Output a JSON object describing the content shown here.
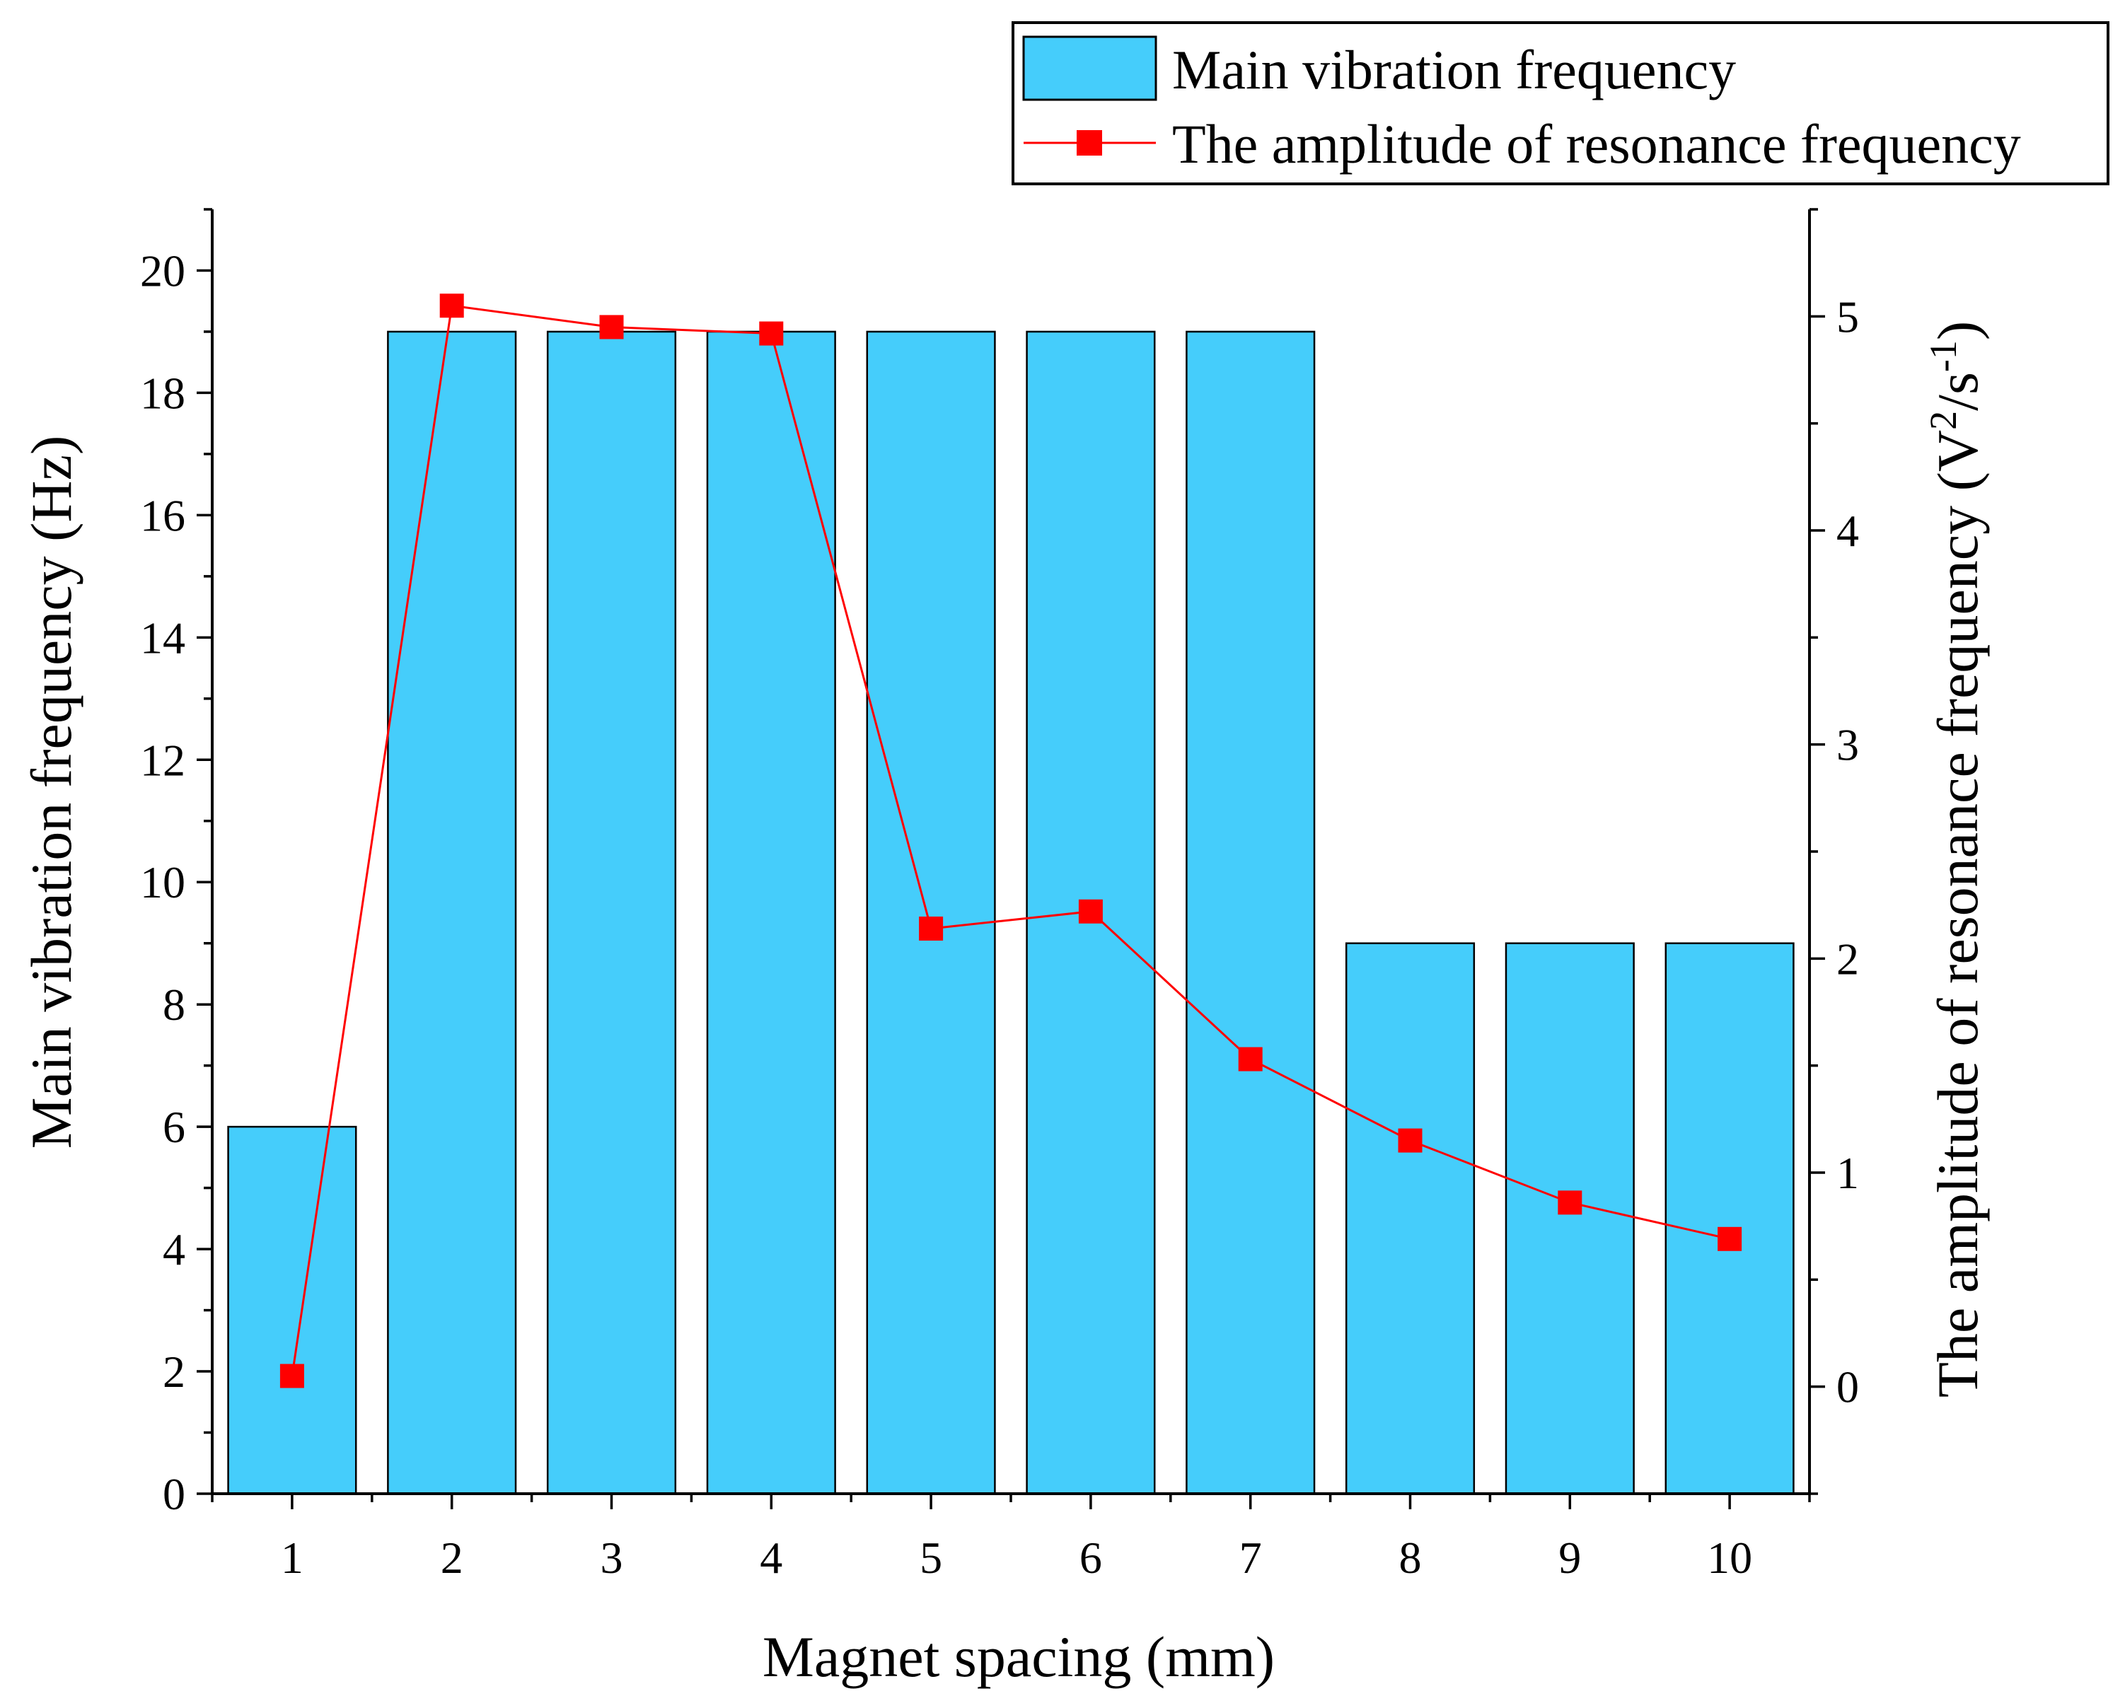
{
  "chart_data": {
    "type": "bar",
    "categories": [
      "1",
      "2",
      "3",
      "4",
      "5",
      "6",
      "7",
      "8",
      "9",
      "10"
    ],
    "xlabel": "Magnet spacing (mm)",
    "y_left": {
      "label": "Main vibration frequency (Hz)",
      "ylim": [
        0,
        21
      ],
      "ticks": [
        "0",
        "2",
        "4",
        "6",
        "8",
        "10",
        "12",
        "14",
        "16",
        "18",
        "20"
      ]
    },
    "y_right": {
      "label_main": "The amplitude of resonance frequency (V",
      "label_sup1": "2",
      "label_mid": "/s",
      "label_sup2": "-1",
      "label_end": ")",
      "ylim": [
        -0.5,
        5.5
      ],
      "ticks": [
        "0",
        "1",
        "2",
        "3",
        "4",
        "5"
      ]
    },
    "series": [
      {
        "name": "Main vibration frequency",
        "type": "bar",
        "axis": "left",
        "color": "#45cdfb",
        "values": [
          6,
          19,
          19,
          19,
          19,
          19,
          19,
          9,
          9,
          9
        ]
      },
      {
        "name": "The amplitude of resonance frequency",
        "type": "line",
        "axis": "right",
        "color": "#ff0000",
        "values": [
          0.05,
          5.05,
          4.95,
          4.92,
          2.14,
          2.22,
          1.53,
          1.15,
          0.86,
          0.69
        ]
      }
    ],
    "legend": {
      "position": "top-right",
      "items": [
        "Main vibration frequency",
        "The amplitude of resonance frequency"
      ]
    }
  }
}
